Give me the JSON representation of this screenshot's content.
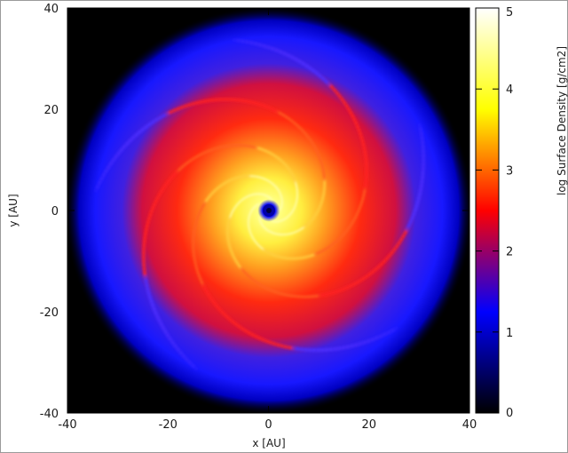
{
  "chart_data": {
    "type": "heatmap",
    "title": "",
    "xlabel": "x [AU]",
    "ylabel": "y [AU]",
    "xlim": [
      -40,
      40
    ],
    "ylim": [
      -40,
      40
    ],
    "x_ticks": [
      -40,
      -20,
      0,
      20,
      40
    ],
    "y_ticks": [
      -40,
      -20,
      0,
      20,
      40
    ],
    "grid": false,
    "colorbar": {
      "label": "log Surface Density [g/cm2]",
      "range": [
        0,
        5
      ],
      "ticks": [
        0,
        1,
        2,
        3,
        4,
        5
      ],
      "colormap": [
        "#000000",
        "#0000ff",
        "#ff0000",
        "#ffff00",
        "#ffffff"
      ]
    },
    "field": {
      "description_free": true,
      "disk_center": [
        0,
        0
      ],
      "inner_hole_radius": 1.3,
      "bright_core_radius": 7,
      "outer_edge_radius": 36,
      "spiral_arms": 5,
      "levels": [
        {
          "r": 0,
          "value": 0.6
        },
        {
          "r": 1.3,
          "value": 0.9
        },
        {
          "r": 2.5,
          "value": 4.6
        },
        {
          "r": 6,
          "value": 3.9
        },
        {
          "r": 10,
          "value": 3.2
        },
        {
          "r": 18,
          "value": 2.4
        },
        {
          "r": 26,
          "value": 1.6
        },
        {
          "r": 32,
          "value": 1.0
        },
        {
          "r": 37,
          "value": 0.2
        },
        {
          "r": 40,
          "value": 0.0
        }
      ]
    }
  },
  "colors": {
    "background": "#000000",
    "frame": "#9a9a9a"
  }
}
